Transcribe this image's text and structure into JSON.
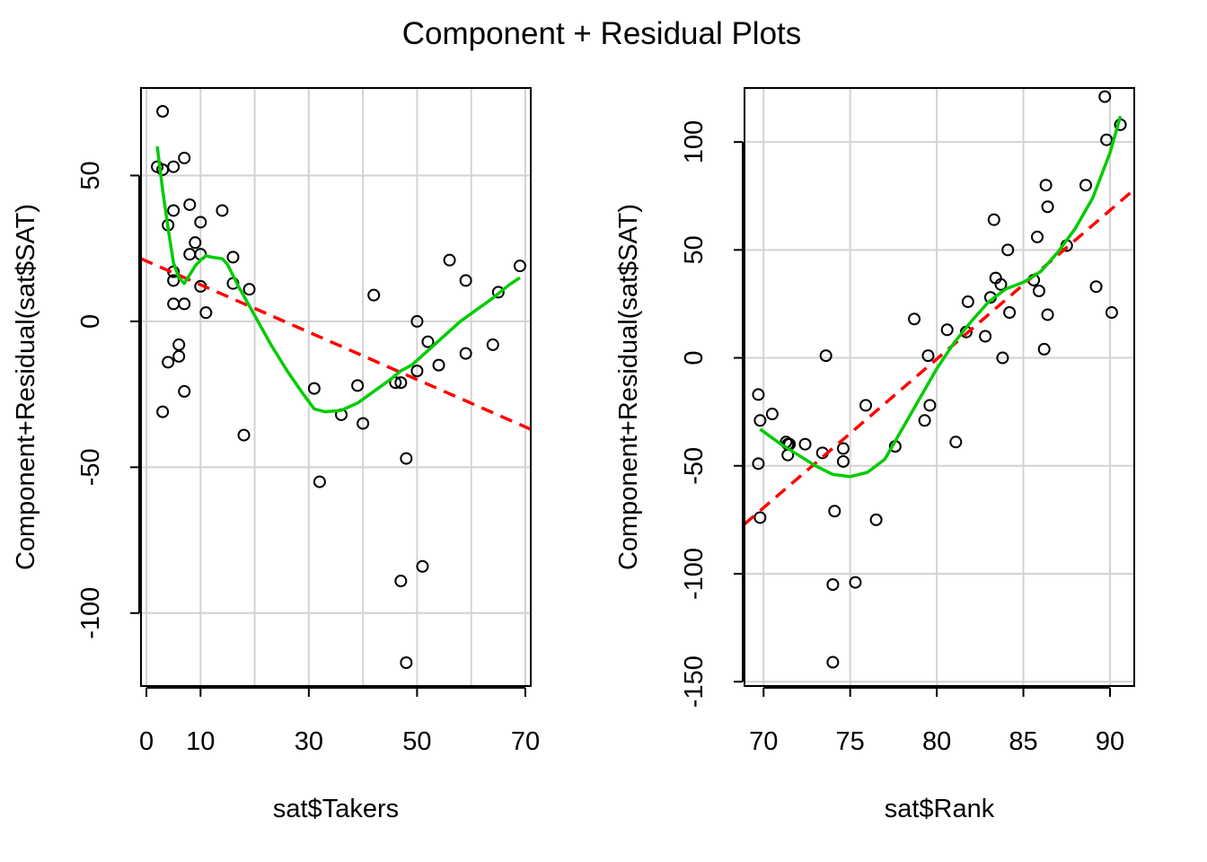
{
  "title": "Component + Residual Plots",
  "colors": {
    "points": "#000000",
    "fit": "#ff0000",
    "smooth": "#00cc00",
    "grid": "#d3d3d3",
    "box": "#000000"
  },
  "chart_data": [
    {
      "type": "scatter",
      "xlabel": "sat$Takers",
      "ylabel": "Component+Residual(sat$SAT)",
      "xlim": [
        -1,
        71
      ],
      "ylim": [
        -125,
        80
      ],
      "xticks": [
        0,
        10,
        30,
        50,
        70
      ],
      "xgrid": [
        0,
        10,
        20,
        30,
        40,
        50,
        60,
        70
      ],
      "yticks": [
        -100,
        -50,
        0,
        50
      ],
      "grid": true,
      "points": [
        [
          2,
          53
        ],
        [
          3,
          72
        ],
        [
          3,
          52
        ],
        [
          3,
          -31
        ],
        [
          4,
          33
        ],
        [
          4,
          -14
        ],
        [
          5,
          53
        ],
        [
          5,
          38
        ],
        [
          5,
          17
        ],
        [
          5,
          14
        ],
        [
          5,
          6
        ],
        [
          6,
          -8
        ],
        [
          6,
          -12
        ],
        [
          7,
          56
        ],
        [
          7,
          6
        ],
        [
          7,
          -24
        ],
        [
          8,
          40
        ],
        [
          8,
          23
        ],
        [
          9,
          27
        ],
        [
          10,
          34
        ],
        [
          10,
          23
        ],
        [
          10,
          12
        ],
        [
          11,
          3
        ],
        [
          14,
          38
        ],
        [
          16,
          22
        ],
        [
          16,
          13
        ],
        [
          18,
          -39
        ],
        [
          19,
          11
        ],
        [
          31,
          -23
        ],
        [
          32,
          -55
        ],
        [
          36,
          -32
        ],
        [
          39,
          -22
        ],
        [
          40,
          -35
        ],
        [
          42,
          9
        ],
        [
          46,
          -21
        ],
        [
          47,
          -89
        ],
        [
          47,
          -21
        ],
        [
          48,
          -47
        ],
        [
          48,
          -117
        ],
        [
          50,
          0
        ],
        [
          50,
          -17
        ],
        [
          51,
          -84
        ],
        [
          52,
          -7
        ],
        [
          54,
          -15
        ],
        [
          56,
          21
        ],
        [
          59,
          14
        ],
        [
          59,
          -11
        ],
        [
          64,
          -8
        ],
        [
          65,
          10
        ],
        [
          69,
          19
        ]
      ],
      "fit_line": [
        [
          -1,
          21.5
        ],
        [
          71,
          -37
        ]
      ],
      "smooth_line": [
        [
          2,
          60
        ],
        [
          3,
          45
        ],
        [
          4,
          32
        ],
        [
          5,
          20
        ],
        [
          6,
          15
        ],
        [
          7,
          13
        ],
        [
          8,
          16
        ],
        [
          9,
          19
        ],
        [
          10,
          21
        ],
        [
          11,
          22.5
        ],
        [
          12,
          22
        ],
        [
          14,
          21.5
        ],
        [
          15,
          19.5
        ],
        [
          17,
          12
        ],
        [
          20,
          2
        ],
        [
          23,
          -8
        ],
        [
          26,
          -17
        ],
        [
          29,
          -25
        ],
        [
          31,
          -30
        ],
        [
          33,
          -31
        ],
        [
          36,
          -30.5
        ],
        [
          39,
          -28
        ],
        [
          42,
          -24
        ],
        [
          45,
          -20
        ],
        [
          47,
          -17
        ],
        [
          49,
          -15
        ],
        [
          52,
          -10
        ],
        [
          55,
          -5
        ],
        [
          58,
          0
        ],
        [
          61,
          4
        ],
        [
          64,
          8
        ],
        [
          67,
          12.5
        ],
        [
          69,
          15
        ]
      ]
    },
    {
      "type": "scatter",
      "xlabel": "sat$Rank",
      "ylabel": "Component+Residual(sat$SAT)",
      "xlim": [
        68.9,
        91.4
      ],
      "ylim": [
        -152,
        125
      ],
      "xticks": [
        70,
        75,
        80,
        85,
        90
      ],
      "yticks": [
        -150,
        -100,
        -50,
        0,
        50,
        100
      ],
      "grid": true,
      "points": [
        [
          69.7,
          -17
        ],
        [
          69.8,
          -29
        ],
        [
          69.7,
          -49
        ],
        [
          69.8,
          -74
        ],
        [
          70.5,
          -26
        ],
        [
          71.3,
          -39
        ],
        [
          71.4,
          -40
        ],
        [
          71.4,
          -45
        ],
        [
          71.5,
          -40
        ],
        [
          72.4,
          -40
        ],
        [
          73.4,
          -44
        ],
        [
          73.6,
          1
        ],
        [
          74.1,
          -71
        ],
        [
          74.0,
          -105
        ],
        [
          74.0,
          -141
        ],
        [
          74.6,
          -42
        ],
        [
          74.6,
          -48
        ],
        [
          75.3,
          -104
        ],
        [
          75.9,
          -22
        ],
        [
          76.5,
          -75
        ],
        [
          77.6,
          -41
        ],
        [
          78.7,
          18
        ],
        [
          79.3,
          -29
        ],
        [
          79.5,
          1
        ],
        [
          79.6,
          -22
        ],
        [
          80.6,
          13
        ],
        [
          81.1,
          -39
        ],
        [
          81.7,
          12
        ],
        [
          81.8,
          26
        ],
        [
          82.8,
          10
        ],
        [
          83.1,
          28
        ],
        [
          83.3,
          64
        ],
        [
          83.4,
          37
        ],
        [
          83.7,
          34
        ],
        [
          83.8,
          0
        ],
        [
          84.1,
          50
        ],
        [
          84.2,
          21
        ],
        [
          85.6,
          36
        ],
        [
          85.8,
          56
        ],
        [
          85.9,
          31
        ],
        [
          86.2,
          4
        ],
        [
          86.3,
          80
        ],
        [
          86.4,
          70
        ],
        [
          86.4,
          20
        ],
        [
          87.5,
          52
        ],
        [
          88.6,
          80
        ],
        [
          89.2,
          33
        ],
        [
          89.7,
          121
        ],
        [
          89.8,
          101
        ],
        [
          90.1,
          21
        ],
        [
          90.6,
          108
        ]
      ],
      "fit_line": [
        [
          68.9,
          -77
        ],
        [
          91.4,
          78
        ]
      ],
      "smooth_line": [
        [
          69.8,
          -33
        ],
        [
          71,
          -40
        ],
        [
          72,
          -45
        ],
        [
          73,
          -50
        ],
        [
          74,
          -54
        ],
        [
          75,
          -55
        ],
        [
          76,
          -53
        ],
        [
          77,
          -47
        ],
        [
          78,
          -33
        ],
        [
          79,
          -19
        ],
        [
          80,
          -5
        ],
        [
          81,
          7
        ],
        [
          82,
          17
        ],
        [
          83,
          26
        ],
        [
          84,
          32
        ],
        [
          85,
          35
        ],
        [
          86,
          40
        ],
        [
          87,
          49
        ],
        [
          88,
          60
        ],
        [
          89,
          74
        ],
        [
          90,
          95
        ],
        [
          90.6,
          112
        ]
      ]
    }
  ]
}
